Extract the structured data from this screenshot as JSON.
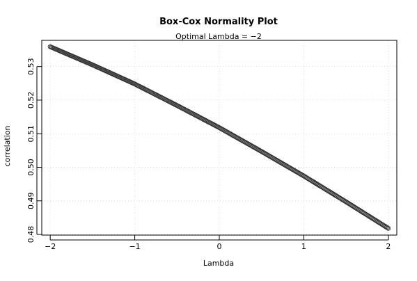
{
  "chart_data": {
    "type": "scatter",
    "title": "Box-Cox Normality Plot",
    "subtitle": "Optimal Lambda = −2",
    "xlabel": "Lambda",
    "ylabel": "correlation",
    "xlim": [
      -2.1,
      2.1
    ],
    "ylim": [
      0.4798,
      0.5378
    ],
    "xticks": [
      -2,
      -1,
      0,
      1,
      2
    ],
    "xtick_labels": [
      "−2",
      "−1",
      "0",
      "1",
      "2"
    ],
    "yticks": [
      0.48,
      0.49,
      0.5,
      0.51,
      0.52,
      0.53
    ],
    "ytick_labels": [
      "0.48",
      "0.49",
      "0.50",
      "0.51",
      "0.52",
      "0.53"
    ],
    "grid": true,
    "series": [
      {
        "x_start": -2,
        "x_end": 2,
        "x_step": 0.01,
        "curve_points": [
          {
            "x": -2.0,
            "y": 0.5359
          },
          {
            "x": -1.5,
            "y": 0.5305
          },
          {
            "x": -1.0,
            "y": 0.5248
          },
          {
            "x": -0.5,
            "y": 0.5184
          },
          {
            "x": 0.0,
            "y": 0.5118
          },
          {
            "x": 0.5,
            "y": 0.5047
          },
          {
            "x": 1.0,
            "y": 0.4974
          },
          {
            "x": 1.5,
            "y": 0.4897
          },
          {
            "x": 2.0,
            "y": 0.4818
          }
        ]
      }
    ],
    "colors": {
      "points": "#333333",
      "grid": "#d9d9d9",
      "axis": "#000000"
    }
  }
}
